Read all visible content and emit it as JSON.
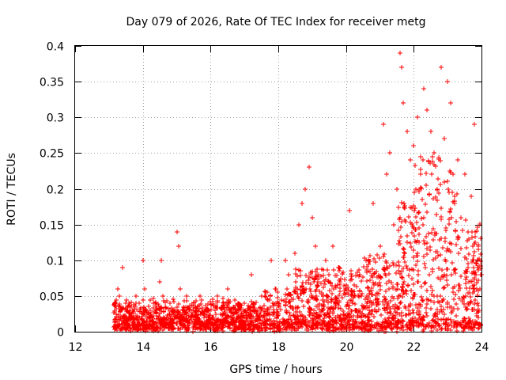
{
  "chart_data": {
    "type": "scatter",
    "title": "Day 079 of 2026, Rate Of TEC Index for receiver metg",
    "xlabel": "GPS time / hours",
    "ylabel": "ROTI / TECUs",
    "xlim": [
      12,
      24
    ],
    "ylim": [
      0,
      0.4
    ],
    "xticks": [
      12,
      14,
      16,
      18,
      20,
      22,
      24
    ],
    "xtick_labels": [
      "12",
      "14",
      "16",
      "18",
      "20",
      "22",
      "24"
    ],
    "yticks": [
      0,
      0.05,
      0.1,
      0.15,
      0.2,
      0.25,
      0.3,
      0.35,
      0.4
    ],
    "ytick_labels": [
      "0",
      "0.05",
      "0.1",
      "0.15",
      "0.2",
      "0.25",
      "0.3",
      "0.35",
      "0.4"
    ],
    "grid": true,
    "marker": "+",
    "color": "#ff0000",
    "series": [
      {
        "name": "ROTI",
        "points": [
          [
            13.2,
            0.01
          ],
          [
            13.25,
            0.06
          ],
          [
            13.3,
            0.05
          ],
          [
            13.35,
            0.03
          ],
          [
            13.4,
            0.09
          ],
          [
            13.45,
            0.02
          ],
          [
            13.5,
            0.04
          ],
          [
            13.6,
            0.02
          ],
          [
            13.7,
            0.03
          ],
          [
            13.8,
            0.05
          ],
          [
            13.9,
            0.04
          ],
          [
            14.0,
            0.1
          ],
          [
            14.05,
            0.06
          ],
          [
            14.1,
            0.03
          ],
          [
            14.2,
            0.02
          ],
          [
            14.3,
            0.04
          ],
          [
            14.4,
            0.03
          ],
          [
            14.5,
            0.07
          ],
          [
            14.55,
            0.1
          ],
          [
            14.6,
            0.05
          ],
          [
            14.7,
            0.02
          ],
          [
            14.8,
            0.04
          ],
          [
            14.9,
            0.03
          ],
          [
            15.0,
            0.14
          ],
          [
            15.05,
            0.12
          ],
          [
            15.1,
            0.06
          ],
          [
            15.2,
            0.03
          ],
          [
            15.3,
            0.05
          ],
          [
            15.4,
            0.02
          ],
          [
            15.5,
            0.04
          ],
          [
            15.6,
            0.03
          ],
          [
            15.7,
            0.05
          ],
          [
            15.8,
            0.02
          ],
          [
            15.9,
            0.03
          ],
          [
            16.0,
            0.02
          ],
          [
            16.2,
            0.05
          ],
          [
            16.4,
            0.04
          ],
          [
            16.5,
            0.06
          ],
          [
            16.6,
            0.03
          ],
          [
            16.8,
            0.02
          ],
          [
            17.0,
            0.04
          ],
          [
            17.2,
            0.08
          ],
          [
            17.4,
            0.03
          ],
          [
            17.6,
            0.05
          ],
          [
            17.8,
            0.1
          ],
          [
            17.9,
            0.06
          ],
          [
            18.0,
            0.04
          ],
          [
            18.2,
            0.1
          ],
          [
            18.3,
            0.08
          ],
          [
            18.5,
            0.11
          ],
          [
            18.6,
            0.15
          ],
          [
            18.7,
            0.18
          ],
          [
            18.8,
            0.2
          ],
          [
            18.9,
            0.23
          ],
          [
            19.0,
            0.16
          ],
          [
            19.1,
            0.12
          ],
          [
            19.2,
            0.08
          ],
          [
            19.4,
            0.1
          ],
          [
            19.5,
            0.07
          ],
          [
            19.6,
            0.12
          ],
          [
            19.8,
            0.09
          ],
          [
            20.0,
            0.06
          ],
          [
            20.1,
            0.17
          ],
          [
            20.2,
            0.04
          ],
          [
            20.4,
            0.08
          ],
          [
            20.6,
            0.1
          ],
          [
            20.8,
            0.18
          ],
          [
            21.0,
            0.12
          ],
          [
            21.1,
            0.29
          ],
          [
            21.2,
            0.22
          ],
          [
            21.3,
            0.25
          ],
          [
            21.4,
            0.15
          ],
          [
            21.5,
            0.2
          ],
          [
            21.6,
            0.39
          ],
          [
            21.65,
            0.37
          ],
          [
            21.7,
            0.32
          ],
          [
            21.8,
            0.28
          ],
          [
            21.9,
            0.24
          ],
          [
            22.0,
            0.26
          ],
          [
            22.1,
            0.3
          ],
          [
            22.2,
            0.22
          ],
          [
            22.3,
            0.34
          ],
          [
            22.4,
            0.31
          ],
          [
            22.5,
            0.28
          ],
          [
            22.6,
            0.25
          ],
          [
            22.7,
            0.2
          ],
          [
            22.8,
            0.37
          ],
          [
            22.9,
            0.27
          ],
          [
            23.0,
            0.35
          ],
          [
            23.1,
            0.32
          ],
          [
            23.2,
            0.18
          ],
          [
            23.3,
            0.24
          ],
          [
            23.4,
            0.16
          ],
          [
            23.5,
            0.22
          ],
          [
            23.6,
            0.14
          ],
          [
            23.7,
            0.19
          ],
          [
            23.8,
            0.29
          ],
          [
            23.9,
            0.12
          ],
          [
            24.0,
            0.08
          ]
        ]
      }
    ]
  }
}
